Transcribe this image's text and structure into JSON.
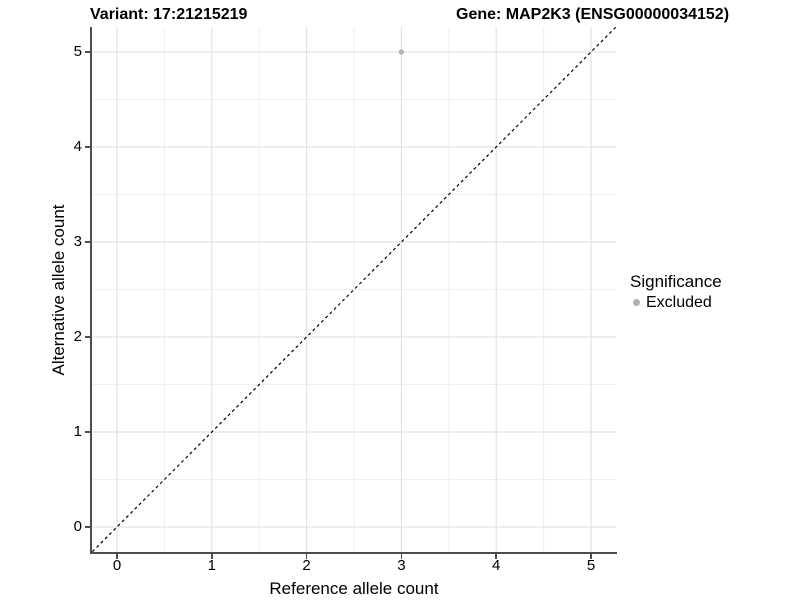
{
  "chart_data": {
    "type": "scatter",
    "titles": {
      "left": "Variant: 17:21215219",
      "right": "Gene: MAP2K3 (ENSG00000034152)"
    },
    "xlabel": "Reference allele count",
    "ylabel": "Alternative allele count",
    "xlim": [
      -0.26,
      5.26
    ],
    "ylim": [
      -0.26,
      5.26
    ],
    "x_ticks": [
      0,
      1,
      2,
      3,
      4,
      5
    ],
    "y_ticks": [
      0,
      1,
      2,
      3,
      4,
      5
    ],
    "x_minor_ticks": [
      0.5,
      1.5,
      2.5,
      3.5,
      4.5
    ],
    "y_minor_ticks": [
      0.5,
      1.5,
      2.5,
      3.5,
      4.5
    ],
    "grid": true,
    "reference_line": {
      "slope": 1,
      "intercept": 0,
      "style": "dashed",
      "color": "#000000"
    },
    "series": [
      {
        "name": "Excluded",
        "color": "#b4b4b4",
        "points": [
          [
            3,
            5
          ]
        ]
      }
    ],
    "legend": {
      "position": "right",
      "title": "Significance",
      "items": [
        {
          "label": "Excluded",
          "color": "#b0b0b0"
        }
      ]
    }
  },
  "theme": {
    "background": "#ffffff",
    "grid_major": "#e3e3e3",
    "grid_minor": "#efefef",
    "axis_line": "#4d4d4d",
    "text_color": "#000000"
  }
}
